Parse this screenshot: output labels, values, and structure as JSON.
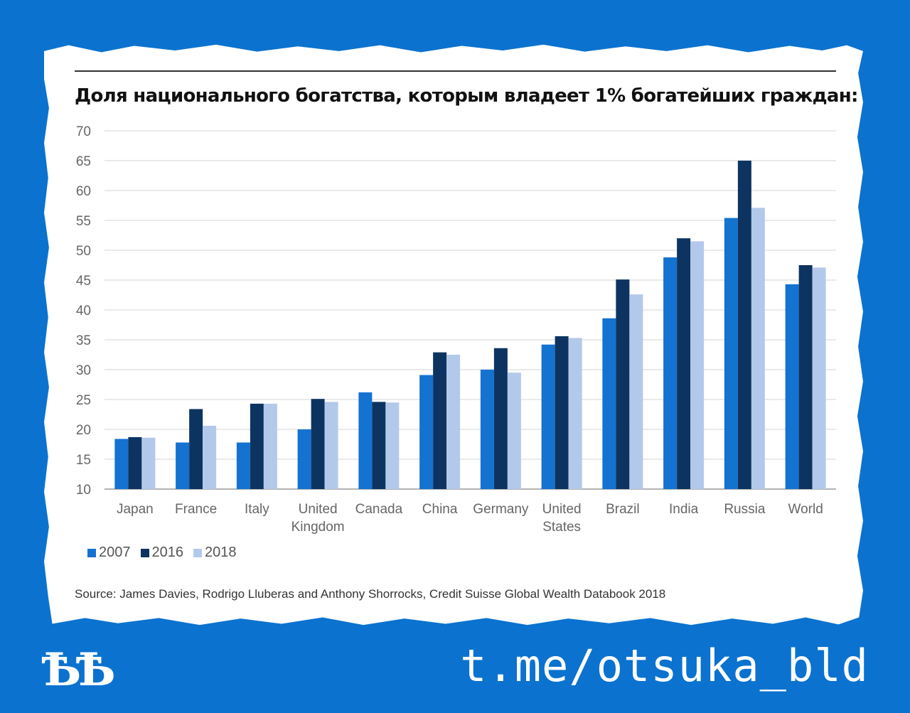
{
  "chart_data": {
    "type": "bar",
    "title": "Доля национального богатства, которым владеет 1% богатейших граждан:",
    "categories": [
      [
        "Japan"
      ],
      [
        "France"
      ],
      [
        "Italy"
      ],
      [
        "United",
        "Kingdom"
      ],
      [
        "Canada"
      ],
      [
        "China"
      ],
      [
        "Germany"
      ],
      [
        "United",
        "States"
      ],
      [
        "Brazil"
      ],
      [
        "India"
      ],
      [
        "Russia"
      ],
      [
        "World"
      ]
    ],
    "series": [
      {
        "name": "2007",
        "color": "#1472d0",
        "values": [
          18.4,
          17.8,
          17.8,
          20.0,
          26.2,
          29.1,
          30.0,
          34.2,
          38.6,
          48.8,
          55.4,
          44.3
        ]
      },
      {
        "name": "2016",
        "color": "#0d3461",
        "values": [
          18.7,
          23.4,
          24.3,
          25.1,
          24.6,
          32.9,
          33.6,
          35.6,
          45.1,
          52.0,
          65.0,
          47.5
        ]
      },
      {
        "name": "2018",
        "color": "#b3c9eb",
        "values": [
          18.6,
          20.6,
          24.3,
          24.6,
          24.5,
          32.5,
          29.5,
          35.3,
          42.6,
          51.5,
          57.1,
          47.1
        ]
      }
    ],
    "ylim": [
      10,
      70
    ],
    "yticks": [
      10,
      15,
      20,
      25,
      30,
      35,
      40,
      45,
      50,
      55,
      60,
      65,
      70
    ],
    "grid": true,
    "legend_position": "bottom-left"
  },
  "source": "Source: James Davies, Rodrigo Lluberas and Anthony Shorrocks, Credit Suisse Global Wealth Databook 2018",
  "logo_text": "ѢѢ",
  "handle": "t.me/otsuka_bld",
  "colors": {
    "background": "#0b72cf",
    "card": "#ffffff"
  }
}
